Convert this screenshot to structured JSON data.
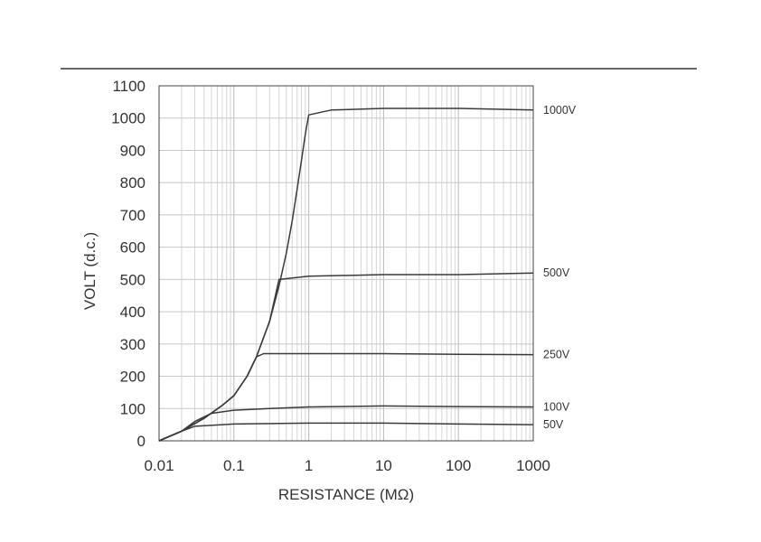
{
  "chart_data": {
    "type": "line",
    "title": "",
    "xlabel": "RESISTANCE (MΩ)",
    "ylabel": "VOLT (d.c.)",
    "x_scale": "log",
    "xlim": [
      0.01,
      1000
    ],
    "ylim": [
      0,
      1100
    ],
    "grid": true,
    "x_ticks": [
      "0.01",
      "0.1",
      "1",
      "10",
      "100",
      "1000"
    ],
    "y_ticks": [
      "0",
      "100",
      "200",
      "300",
      "400",
      "500",
      "600",
      "700",
      "800",
      "900",
      "1000",
      "1100"
    ],
    "series": [
      {
        "name": "1000V",
        "x": [
          0.01,
          0.02,
          0.04,
          0.07,
          0.1,
          0.15,
          0.2,
          0.3,
          0.4,
          0.5,
          0.6,
          0.7,
          0.8,
          0.9,
          1,
          2,
          10,
          100,
          1000
        ],
        "y": [
          0,
          30,
          70,
          110,
          140,
          200,
          260,
          370,
          480,
          580,
          680,
          780,
          870,
          950,
          1010,
          1025,
          1030,
          1030,
          1025
        ]
      },
      {
        "name": "500V",
        "x": [
          0.01,
          0.02,
          0.04,
          0.07,
          0.1,
          0.15,
          0.2,
          0.3,
          0.4,
          1,
          10,
          100,
          1000
        ],
        "y": [
          0,
          30,
          70,
          110,
          140,
          200,
          260,
          370,
          500,
          510,
          515,
          515,
          520
        ]
      },
      {
        "name": "250V",
        "x": [
          0.01,
          0.02,
          0.04,
          0.07,
          0.1,
          0.15,
          0.2,
          0.25,
          1,
          10,
          100,
          1000
        ],
        "y": [
          0,
          30,
          70,
          110,
          140,
          200,
          260,
          270,
          270,
          270,
          268,
          267
        ]
      },
      {
        "name": "100V",
        "x": [
          0.01,
          0.02,
          0.03,
          0.05,
          0.1,
          0.3,
          1,
          10,
          100,
          1000
        ],
        "y": [
          0,
          30,
          60,
          85,
          95,
          100,
          105,
          108,
          106,
          105
        ]
      },
      {
        "name": "50V",
        "x": [
          0.01,
          0.02,
          0.03,
          0.1,
          1,
          10,
          100,
          1000
        ],
        "y": [
          0,
          30,
          45,
          52,
          55,
          55,
          52,
          50
        ]
      }
    ]
  }
}
